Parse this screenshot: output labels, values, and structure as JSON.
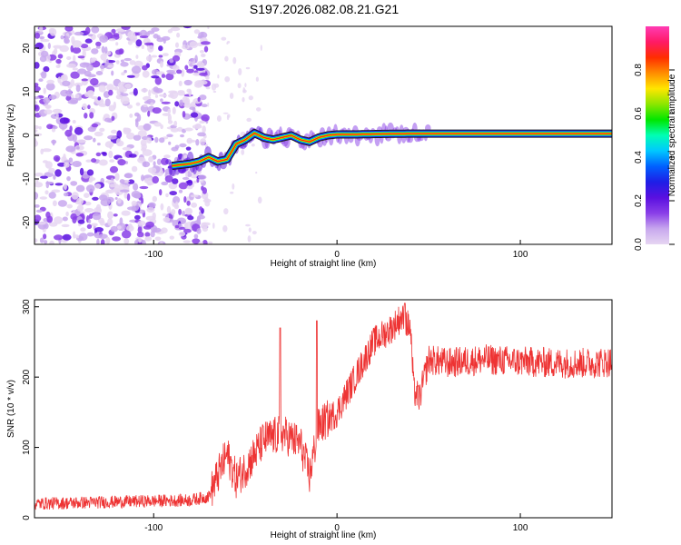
{
  "title": "S197.2026.082.08.21.G21",
  "colormap": [
    "#e6d6f2",
    "#c8a8ee",
    "#8a3fe8",
    "#5a10e0",
    "#1e1ee6",
    "#0060ff",
    "#00c8ff",
    "#00ffb4",
    "#00e600",
    "#8ce600",
    "#ffe600",
    "#ff8c00",
    "#ff2d00",
    "#ff1a66",
    "#ff3cb4"
  ],
  "chart_data": [
    {
      "type": "heatmap",
      "xlabel": "Height of straight line (km)",
      "ylabel": "Frequency (Hz)",
      "xlim": [
        -165,
        150
      ],
      "ylim": [
        -25,
        25
      ],
      "x_ticks": [
        -100,
        0,
        100
      ],
      "y_ticks": [
        -20,
        -10,
        0,
        10,
        20
      ],
      "ridge": {
        "x": [
          -90,
          -80,
          -75,
          -70,
          -65,
          -60,
          -55,
          -50,
          -45,
          -40,
          -35,
          -30,
          -25,
          -20,
          -15,
          -10,
          -5,
          0,
          10,
          20,
          40,
          150
        ],
        "y": [
          -7,
          -6.5,
          -6,
          -5,
          -6,
          -5.5,
          -2,
          -1,
          0.5,
          -0.5,
          -1,
          -0.5,
          0,
          -1,
          -1.5,
          -0.5,
          0,
          0.2,
          0.2,
          0.3,
          0.4,
          0.4
        ]
      },
      "noise_region": [
        -165,
        -75
      ]
    },
    {
      "type": "line",
      "xlabel": "Height of straight line (km)",
      "ylabel": "SNR (10 * v/v)",
      "xlim": [
        -165,
        150
      ],
      "ylim": [
        0,
        310
      ],
      "x_ticks": [
        -100,
        0,
        100
      ],
      "y_ticks": [
        0,
        100,
        200,
        300
      ],
      "envelope": {
        "x": [
          -165,
          -130,
          -80,
          -70,
          -60,
          -55,
          -50,
          -40,
          -30,
          -20,
          -15,
          -10,
          0,
          10,
          20,
          30,
          35,
          40,
          42,
          45,
          50,
          60,
          80,
          100,
          120,
          140,
          150
        ],
        "y": [
          20,
          22,
          25,
          30,
          90,
          55,
          70,
          110,
          120,
          105,
          60,
          130,
          150,
          200,
          250,
          270,
          285,
          270,
          180,
          170,
          225,
          220,
          225,
          222,
          220,
          220,
          222
        ]
      },
      "spikes": [
        {
          "x": -31,
          "y": 270
        },
        {
          "x": -11,
          "y": 280
        },
        {
          "x": 37,
          "y": 305
        }
      ],
      "color": "#ee3333"
    }
  ],
  "colorbar": {
    "label": "Normalized spectral amplitude",
    "ticks": [
      "0.0",
      "0.2",
      "0.4",
      "0.6",
      "0.8"
    ]
  }
}
